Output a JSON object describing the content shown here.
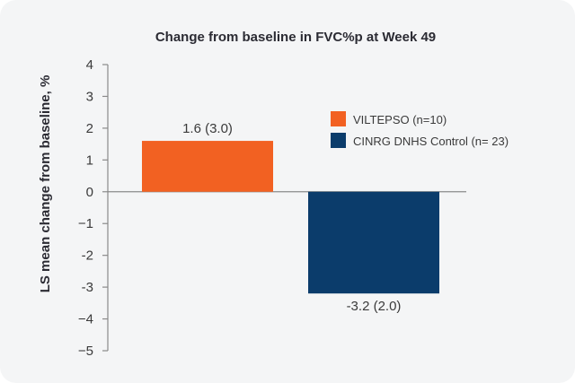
{
  "chart_data": {
    "type": "bar",
    "title": "Change from baseline in FVC%p at Week 49",
    "xlabel": "",
    "ylabel": "LS mean change from baseline, %",
    "ylim": [
      -5,
      4
    ],
    "yticks": [
      4,
      3,
      2,
      1,
      0,
      -1,
      -2,
      -3,
      -4,
      -5
    ],
    "ytick_labels": [
      "4",
      "3",
      "2",
      "1",
      "0",
      "−1",
      "-2",
      "-3",
      "−4",
      "−5"
    ],
    "grid": false,
    "legend_position": "top-right",
    "series": [
      {
        "name": "VILTEPSO (n=10)",
        "value": 1.6,
        "label": "1.6 (3.0)",
        "color": "#f26122"
      },
      {
        "name": "CINRG DNHS Control (n= 23)",
        "value": -3.2,
        "label": "-3.2 (2.0)",
        "color": "#0b3c6b"
      }
    ]
  }
}
